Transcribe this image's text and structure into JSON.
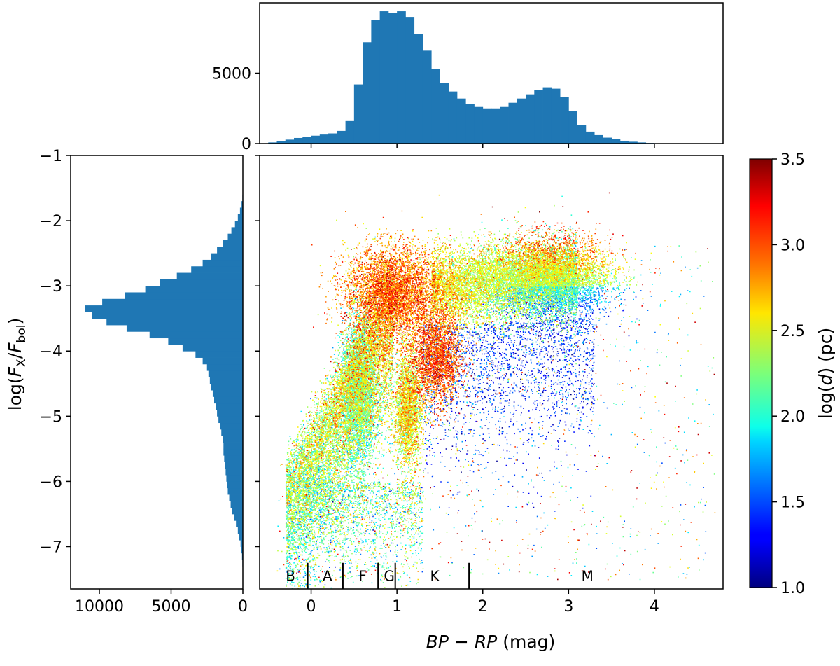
{
  "chart_data": [
    {
      "panel": "main-scatter",
      "type": "scatter",
      "xlabel": "BP − RP (mag)",
      "ylabel": "log(F_X/F_bol)",
      "xlim": [
        -0.6,
        4.8
      ],
      "ylim": [
        -7.65,
        -1.0
      ],
      "xticks": [
        0,
        1,
        2,
        3,
        4
      ],
      "yticks": [
        -7,
        -6,
        -5,
        -4,
        -3,
        -2,
        -1
      ],
      "xtick_labels": [
        "0",
        "1",
        "2",
        "3",
        "4"
      ],
      "ytick_labels": [
        "−7",
        "−6",
        "−5",
        "−4",
        "−3",
        "−2",
        "−1"
      ],
      "grid": false,
      "point_density_clusters": [
        {
          "x_center": 0.55,
          "y_center": -4.6,
          "x_spread": 0.25,
          "y_spread": 0.6,
          "log_d_typical": 2.3
        },
        {
          "x_center": 1.1,
          "y_center": -3.4,
          "x_spread": 0.3,
          "y_spread": 0.4,
          "log_d_typical": 2.9
        },
        {
          "x_center": 1.2,
          "y_center": -4.9,
          "x_spread": 0.12,
          "y_spread": 0.4,
          "log_d_typical": 2.4
        },
        {
          "x_center": 1.5,
          "y_center": -4.2,
          "x_spread": 0.2,
          "y_spread": 0.3,
          "log_d_typical": 3.0
        },
        {
          "x_center": 2.8,
          "y_center": -2.9,
          "x_spread": 0.4,
          "y_spread": 0.35,
          "log_d_typical": 2.2
        },
        {
          "x_center": 2.1,
          "y_center": -4.6,
          "x_spread": 0.6,
          "y_spread": 0.6,
          "log_d_typical": 1.5
        }
      ],
      "spectral_types": {
        "boundaries": [
          -0.04,
          0.37,
          0.78,
          0.98,
          1.84
        ],
        "labels": [
          {
            "text": "B",
            "x": -0.24
          },
          {
            "text": "A",
            "x": 0.19
          },
          {
            "text": "F",
            "x": 0.6
          },
          {
            "text": "G",
            "x": 0.91
          },
          {
            "text": "K",
            "x": 1.44
          },
          {
            "text": "M",
            "x": 3.22
          }
        ],
        "label_y": -7.45
      }
    },
    {
      "panel": "top-histogram",
      "type": "bar",
      "x_bin_start": -0.5,
      "bin_width": 0.1,
      "values": [
        80,
        160,
        280,
        400,
        480,
        560,
        640,
        720,
        900,
        1600,
        4200,
        7200,
        8800,
        9400,
        9300,
        9400,
        9000,
        7800,
        6600,
        5300,
        4300,
        3700,
        3200,
        2800,
        2600,
        2500,
        2500,
        2600,
        2900,
        3200,
        3500,
        3800,
        4000,
        3900,
        3300,
        2300,
        1300,
        850,
        600,
        420,
        300,
        200,
        130,
        80,
        40,
        20,
        10
      ],
      "ylim": [
        0,
        10000
      ],
      "yticks": [
        0,
        5000
      ],
      "ytick_labels": [
        "0",
        "5000"
      ],
      "xlim": [
        -0.6,
        4.8
      ]
    },
    {
      "panel": "left-histogram",
      "type": "bar",
      "orientation": "horizontal",
      "y_bin_start": -7.3,
      "bin_width": 0.1,
      "values": [
        30,
        60,
        100,
        160,
        250,
        350,
        480,
        600,
        750,
        850,
        950,
        1050,
        1100,
        1150,
        1200,
        1250,
        1300,
        1350,
        1350,
        1400,
        1500,
        1600,
        1700,
        1800,
        1900,
        2000,
        2100,
        2200,
        2300,
        2400,
        2500,
        2800,
        3300,
        4200,
        5200,
        6500,
        8100,
        9500,
        10500,
        11000,
        9800,
        8200,
        6800,
        5800,
        4600,
        3600,
        2800,
        2200,
        1800,
        1400,
        1050,
        800,
        550,
        350,
        200,
        90,
        30
      ],
      "xlim": [
        12000,
        0
      ],
      "xticks": [
        10000,
        5000,
        0
      ],
      "xtick_labels": [
        "10000",
        "5000",
        "0"
      ],
      "ylim": [
        -7.65,
        -1.0
      ]
    },
    {
      "panel": "colorbar",
      "type": "colorbar",
      "colormap": "jet",
      "label": "log(d) (pc)",
      "range": [
        1.0,
        3.5
      ],
      "ticks": [
        1.0,
        1.5,
        2.0,
        2.5,
        3.0,
        3.5
      ],
      "tick_labels": [
        "1.0",
        "1.5",
        "2.0",
        "2.5",
        "3.0",
        "3.5"
      ]
    }
  ],
  "colors": {
    "histogram": "#1f77b4",
    "axes": "#000000"
  }
}
